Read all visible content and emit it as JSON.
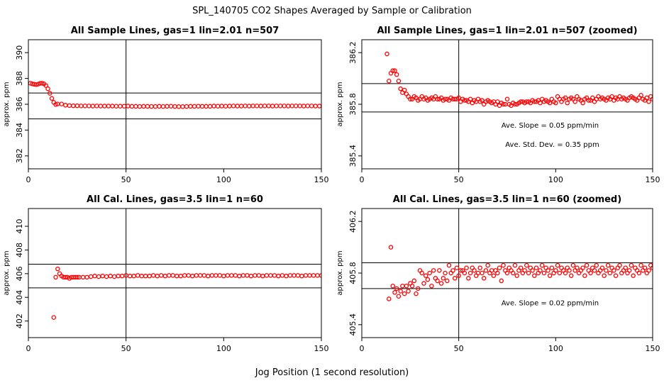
{
  "figure": {
    "title": "SPL_140705  CO2 Shapes Averaged by Sample or Calibration",
    "xlabel": "Jog Position (1 second resolution)"
  },
  "colors": {
    "points": "#ff0000",
    "lines": "#000000"
  },
  "chart_data": [
    {
      "type": "scatter",
      "title": "All Sample Lines, gas=1 lin=2.01 n=507",
      "ylabel": "approx. ppm",
      "xlim": [
        0,
        150
      ],
      "ylim": [
        381,
        391
      ],
      "xticks": [
        0,
        50,
        100,
        150
      ],
      "yticks": [
        382,
        384,
        386,
        388,
        390
      ],
      "xticklabels": [
        "0",
        "50",
        "100",
        "150"
      ],
      "yticklabels": [
        "382",
        "384",
        "386",
        "388",
        "390"
      ],
      "hlines": [
        386.87,
        384.87
      ],
      "vlines": [
        50
      ],
      "annotations": [],
      "series": [
        {
          "x": [
            1,
            2,
            3,
            4,
            5,
            6,
            7,
            8,
            9,
            10,
            11,
            12,
            13,
            14,
            15,
            17,
            19,
            21,
            23,
            25,
            27,
            29,
            31,
            33,
            35,
            37,
            39,
            41,
            43,
            45,
            47,
            49,
            51,
            53,
            55,
            57,
            59,
            61,
            63,
            65,
            67,
            69,
            71,
            73,
            75,
            77,
            79,
            81,
            83,
            85,
            87,
            89,
            91,
            93,
            95,
            97,
            99,
            101,
            103,
            105,
            107,
            109,
            111,
            113,
            115,
            117,
            119,
            121,
            123,
            125,
            127,
            129,
            131,
            133,
            135,
            137,
            139,
            141,
            143,
            145,
            147,
            149
          ],
          "y": [
            387.63,
            387.58,
            387.55,
            387.52,
            387.56,
            387.62,
            387.63,
            387.58,
            387.45,
            387.2,
            386.85,
            386.45,
            386.15,
            385.98,
            386.02,
            386.02,
            385.93,
            385.9,
            385.88,
            385.88,
            385.87,
            385.87,
            385.87,
            385.86,
            385.87,
            385.86,
            385.86,
            385.86,
            385.86,
            385.85,
            385.85,
            385.85,
            385.86,
            385.84,
            385.84,
            385.83,
            385.84,
            385.84,
            385.83,
            385.83,
            385.84,
            385.83,
            385.84,
            385.85,
            385.83,
            385.82,
            385.82,
            385.83,
            385.84,
            385.84,
            385.85,
            385.84,
            385.84,
            385.84,
            385.86,
            385.85,
            385.86,
            385.85,
            385.86,
            385.87,
            385.86,
            385.86,
            385.87,
            385.86,
            385.87,
            385.87,
            385.86,
            385.87,
            385.87,
            385.86,
            385.87,
            385.87,
            385.87,
            385.86,
            385.87,
            385.87,
            385.87,
            385.86,
            385.87,
            385.87,
            385.86,
            385.86
          ]
        }
      ]
    },
    {
      "type": "scatter",
      "title": "All Sample Lines, gas=1 lin=2.01 n=507 (zoomed)",
      "ylabel": "approx. ppm",
      "xlim": [
        0,
        150
      ],
      "ylim": [
        385.3,
        386.3
      ],
      "xticks": [
        0,
        50,
        100,
        150
      ],
      "yticks": [
        385.4,
        385.8,
        386.2
      ],
      "xticklabels": [
        "0",
        "50",
        "100",
        "150"
      ],
      "yticklabels": [
        "385.4",
        "385.8",
        "386.2"
      ],
      "hlines": [
        385.96,
        385.74
      ],
      "vlines": [
        50
      ],
      "annotations": [
        {
          "text": "Ave. Slope =  0.05  ppm/min",
          "x": 72,
          "y": 385.62
        },
        {
          "text": "Ave. Std. Dev. =  0.35  ppm",
          "x": 74,
          "y": 385.47
        }
      ],
      "series": [
        {
          "x": [
            13,
            14,
            15,
            16,
            17,
            18,
            19,
            20,
            21,
            22,
            23,
            24,
            25,
            26,
            27,
            28,
            29,
            30,
            31,
            32,
            33,
            34,
            35,
            36,
            37,
            38,
            39,
            40,
            41,
            42,
            43,
            44,
            45,
            46,
            47,
            48,
            49,
            50,
            51,
            52,
            53,
            54,
            55,
            56,
            57,
            58,
            59,
            60,
            61,
            62,
            63,
            64,
            65,
            66,
            67,
            68,
            69,
            70,
            71,
            72,
            73,
            74,
            75,
            76,
            77,
            78,
            79,
            80,
            81,
            82,
            83,
            84,
            85,
            86,
            87,
            88,
            89,
            90,
            91,
            92,
            93,
            94,
            95,
            96,
            97,
            98,
            99,
            100,
            101,
            102,
            103,
            104,
            105,
            106,
            107,
            108,
            109,
            110,
            111,
            112,
            113,
            114,
            115,
            116,
            117,
            118,
            119,
            120,
            121,
            122,
            123,
            124,
            125,
            126,
            127,
            128,
            129,
            130,
            131,
            132,
            133,
            134,
            135,
            136,
            137,
            138,
            139,
            140,
            141,
            142,
            143,
            144,
            145,
            146,
            147,
            148,
            149,
            150
          ],
          "y": [
            386.19,
            385.98,
            386.04,
            386.06,
            386.06,
            386.03,
            385.98,
            385.92,
            385.89,
            385.91,
            385.88,
            385.86,
            385.84,
            385.84,
            385.86,
            385.85,
            385.83,
            385.84,
            385.86,
            385.84,
            385.85,
            385.83,
            385.84,
            385.85,
            385.84,
            385.86,
            385.84,
            385.84,
            385.85,
            385.83,
            385.84,
            385.84,
            385.83,
            385.85,
            385.84,
            385.84,
            385.84,
            385.85,
            385.82,
            385.84,
            385.83,
            385.83,
            385.82,
            385.84,
            385.81,
            385.83,
            385.82,
            385.84,
            385.82,
            385.83,
            385.8,
            385.82,
            385.83,
            385.82,
            385.81,
            385.82,
            385.8,
            385.82,
            385.79,
            385.81,
            385.8,
            385.8,
            385.84,
            385.8,
            385.79,
            385.81,
            385.8,
            385.8,
            385.81,
            385.82,
            385.82,
            385.81,
            385.82,
            385.82,
            385.81,
            385.83,
            385.82,
            385.82,
            385.83,
            385.81,
            385.84,
            385.82,
            385.83,
            385.82,
            385.81,
            385.84,
            385.82,
            385.81,
            385.86,
            385.84,
            385.82,
            385.84,
            385.85,
            385.81,
            385.84,
            385.85,
            385.84,
            385.82,
            385.86,
            385.84,
            385.83,
            385.81,
            385.84,
            385.85,
            385.83,
            385.83,
            385.85,
            385.82,
            385.84,
            385.86,
            385.84,
            385.85,
            385.84,
            385.83,
            385.85,
            385.84,
            385.86,
            385.83,
            385.85,
            385.84,
            385.86,
            385.84,
            385.85,
            385.84,
            385.83,
            385.85,
            385.86,
            385.85,
            385.84,
            385.83,
            385.85,
            385.87,
            385.84,
            385.83,
            385.85,
            385.82,
            385.86,
            385.84
          ]
        }
      ]
    },
    {
      "type": "scatter",
      "title": "All Cal. Lines, gas=3.5 lin=1 n=60",
      "ylabel": "approx. ppm",
      "xlim": [
        0,
        150
      ],
      "ylim": [
        400.6,
        411.5
      ],
      "xticks": [
        0,
        50,
        100,
        150
      ],
      "yticks": [
        402,
        404,
        406,
        408,
        410
      ],
      "xticklabels": [
        "0",
        "50",
        "100",
        "150"
      ],
      "yticklabels": [
        "402",
        "404",
        "406",
        "408",
        "410"
      ],
      "hlines": [
        406.8,
        404.8
      ],
      "vlines": [
        50
      ],
      "annotations": [],
      "series": [
        {
          "x": [
            13,
            14,
            15,
            16,
            17,
            18,
            19,
            20,
            21,
            22,
            23,
            24,
            25,
            26,
            28,
            30,
            32,
            34,
            36,
            38,
            40,
            42,
            44,
            46,
            48,
            50,
            52,
            54,
            56,
            58,
            60,
            62,
            64,
            66,
            68,
            70,
            72,
            74,
            76,
            78,
            80,
            82,
            84,
            86,
            88,
            90,
            92,
            94,
            96,
            98,
            100,
            102,
            104,
            106,
            108,
            110,
            112,
            114,
            116,
            118,
            120,
            122,
            124,
            126,
            128,
            130,
            132,
            134,
            136,
            138,
            140,
            142,
            144,
            146,
            148,
            150
          ],
          "y": [
            402.3,
            405.7,
            406.4,
            406,
            405.8,
            405.7,
            405.7,
            405.7,
            405.6,
            405.7,
            405.7,
            405.7,
            405.7,
            405.7,
            405.7,
            405.7,
            405.75,
            405.8,
            405.75,
            405.8,
            405.75,
            405.8,
            405.75,
            405.8,
            405.8,
            405.85,
            405.8,
            405.8,
            405.85,
            405.8,
            405.8,
            405.8,
            405.85,
            405.8,
            405.85,
            405.8,
            405.85,
            405.85,
            405.8,
            405.8,
            405.85,
            405.85,
            405.8,
            405.85,
            405.85,
            405.85,
            405.8,
            405.85,
            405.85,
            405.85,
            405.8,
            405.85,
            405.85,
            405.85,
            405.8,
            405.85,
            405.85,
            405.8,
            405.85,
            405.85,
            405.8,
            405.85,
            405.85,
            405.85,
            405.8,
            405.85,
            405.8,
            405.85,
            405.85,
            405.85,
            405.8,
            405.85,
            405.85,
            405.85,
            405.85,
            405.85
          ]
        }
      ]
    },
    {
      "type": "scatter",
      "title": "All Cal. Lines, gas=3.5 lin=1 n=60 (zoomed)",
      "ylabel": "approx. ppm",
      "xlim": [
        0,
        150
      ],
      "ylim": [
        405.3,
        406.3
      ],
      "xticks": [
        0,
        50,
        100,
        150
      ],
      "yticks": [
        405.4,
        405.8,
        406.2
      ],
      "xticklabels": [
        "0",
        "50",
        "100",
        "150"
      ],
      "yticklabels": [
        "405.4",
        "405.8",
        "406.2"
      ],
      "hlines": [
        405.88,
        405.68
      ],
      "vlines": [
        50
      ],
      "annotations": [
        {
          "text": "Ave. Slope =  0.02  ppm/min",
          "x": 72,
          "y": 405.55
        }
      ],
      "series": [
        {
          "x": [
            14,
            15,
            16,
            17,
            18,
            19,
            20,
            21,
            22,
            23,
            24,
            25,
            26,
            27,
            28,
            29,
            30,
            31,
            32,
            33,
            34,
            35,
            36,
            37,
            38,
            39,
            40,
            41,
            42,
            43,
            44,
            45,
            46,
            47,
            48,
            49,
            50,
            51,
            52,
            53,
            54,
            55,
            56,
            57,
            58,
            59,
            60,
            61,
            62,
            63,
            64,
            65,
            66,
            67,
            68,
            69,
            70,
            71,
            72,
            73,
            74,
            75,
            76,
            77,
            78,
            79,
            80,
            81,
            82,
            83,
            84,
            85,
            86,
            87,
            88,
            89,
            90,
            91,
            92,
            93,
            94,
            95,
            96,
            97,
            98,
            99,
            100,
            101,
            102,
            103,
            104,
            105,
            106,
            107,
            108,
            109,
            110,
            111,
            112,
            113,
            114,
            115,
            116,
            117,
            118,
            119,
            120,
            121,
            122,
            123,
            124,
            125,
            126,
            127,
            128,
            129,
            130,
            131,
            132,
            133,
            134,
            135,
            136,
            137,
            138,
            139,
            140,
            141,
            142,
            143,
            144,
            145,
            146,
            147,
            148,
            149,
            150
          ],
          "y": [
            405.6,
            406,
            405.7,
            405.65,
            405.68,
            405.62,
            405.66,
            405.7,
            405.64,
            405.7,
            405.66,
            405.72,
            405.7,
            405.74,
            405.64,
            405.68,
            405.82,
            405.8,
            405.72,
            405.78,
            405.75,
            405.8,
            405.7,
            405.82,
            405.76,
            405.74,
            405.82,
            405.72,
            405.76,
            405.8,
            405.74,
            405.86,
            405.8,
            405.82,
            405.76,
            405.84,
            405.78,
            405.82,
            405.82,
            405.8,
            405.84,
            405.76,
            405.8,
            405.84,
            405.82,
            405.78,
            405.8,
            405.84,
            405.8,
            405.76,
            405.82,
            405.86,
            405.8,
            405.82,
            405.78,
            405.82,
            405.8,
            405.84,
            405.74,
            405.86,
            405.82,
            405.8,
            405.84,
            405.82,
            405.8,
            405.86,
            405.78,
            405.82,
            405.84,
            405.8,
            405.82,
            405.86,
            405.8,
            405.84,
            405.82,
            405.78,
            405.84,
            405.8,
            405.82,
            405.86,
            405.8,
            405.84,
            405.82,
            405.78,
            405.84,
            405.8,
            405.82,
            405.86,
            405.8,
            405.84,
            405.82,
            405.8,
            405.84,
            405.82,
            405.78,
            405.86,
            405.82,
            405.84,
            405.8,
            405.82,
            405.84,
            405.78,
            405.86,
            405.82,
            405.8,
            405.84,
            405.82,
            405.86,
            405.8,
            405.82,
            405.84,
            405.78,
            405.82,
            405.86,
            405.8,
            405.84,
            405.82,
            405.78,
            405.84,
            405.86,
            405.8,
            405.82,
            405.84,
            405.8,
            405.82,
            405.86,
            405.78,
            405.84,
            405.82,
            405.8,
            405.86,
            405.82,
            405.84,
            405.8,
            405.82,
            405.86,
            405.84
          ]
        }
      ]
    }
  ]
}
